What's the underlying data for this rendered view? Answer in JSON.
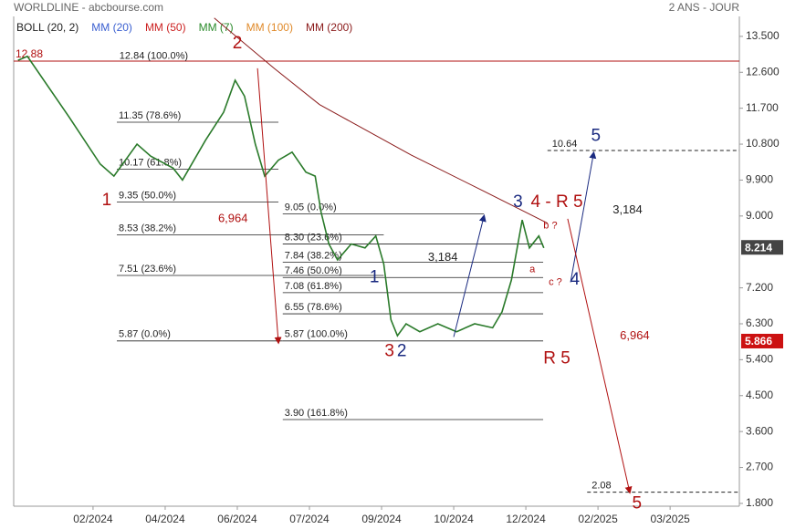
{
  "chart_data": {
    "type": "line",
    "title": "WORLDLINE - abcbourse.com",
    "subtitle": "2 ANS - JOUR",
    "indicators": [
      {
        "name": "BOLL (20, 2)",
        "color": "#222222"
      },
      {
        "name": "MM (20)",
        "color": "#3a5fd0"
      },
      {
        "name": "MM (50)",
        "color": "#cc2222"
      },
      {
        "name": "MM (7)",
        "color": "#2a8a2a"
      },
      {
        "name": "MM (100)",
        "color": "#e08a2a"
      },
      {
        "name": "MM (200)",
        "color": "#8a1a1a"
      }
    ],
    "series": [
      {
        "name": "WORLDLINE",
        "color": "#2a7a2a",
        "x": [
          -1.04,
          -0.91,
          -0.34,
          0.1,
          0.29,
          0.61,
          0.8,
          1.11,
          1.24,
          1.56,
          1.81,
          1.97,
          2.1,
          2.25,
          2.38,
          2.57,
          2.76,
          2.95,
          3.08,
          3.16,
          3.27,
          3.39,
          3.58,
          3.77,
          3.92,
          4.03,
          4.13,
          4.22,
          4.34,
          4.53,
          4.78,
          5.04,
          5.29,
          5.54,
          5.67,
          5.8,
          5.95,
          6.05,
          6.18,
          6.25
        ],
        "values": [
          12.9,
          13.0,
          11.5,
          10.3,
          10.0,
          10.8,
          10.5,
          10.2,
          9.9,
          10.9,
          11.6,
          12.4,
          12.0,
          10.8,
          10.0,
          10.4,
          10.6,
          10.1,
          10.0,
          9.1,
          8.3,
          7.9,
          8.3,
          8.2,
          8.5,
          7.8,
          6.4,
          6.0,
          6.3,
          6.1,
          6.3,
          6.1,
          6.3,
          6.2,
          6.6,
          7.4,
          8.9,
          8.2,
          8.5,
          8.2
        ]
      },
      {
        "name": "MM (200)",
        "color": "#8a1a1a",
        "x": [
          1.68,
          2.51,
          3.14,
          4.41,
          5.42,
          6.3
        ],
        "values": [
          13.96,
          12.7,
          11.79,
          10.53,
          9.62,
          8.82
        ]
      }
    ],
    "xlim": [
      -1.1,
      8.96
    ],
    "xticks": [
      {
        "value": 0,
        "label": "02/2024"
      },
      {
        "value": 1,
        "label": "04/2024"
      },
      {
        "value": 2,
        "label": "06/2024"
      },
      {
        "value": 3,
        "label": "07/2024"
      },
      {
        "value": 4,
        "label": "09/2024"
      },
      {
        "value": 5,
        "label": "10/2024"
      },
      {
        "value": 6,
        "label": "12/2024"
      },
      {
        "value": 7,
        "label": "02/2025"
      },
      {
        "value": 8,
        "label": "03/2025"
      }
    ],
    "ylim": [
      1.73,
      14.0
    ],
    "yticks": [
      {
        "value": 13.5,
        "label": "13.500"
      },
      {
        "value": 12.6,
        "label": "12.600"
      },
      {
        "value": 11.7,
        "label": "11.700"
      },
      {
        "value": 10.8,
        "label": "10.800"
      },
      {
        "value": 9.9,
        "label": "9.900"
      },
      {
        "value": 9,
        "label": "9.000"
      },
      {
        "value": 7.2,
        "label": "7.200"
      },
      {
        "value": 6.3,
        "label": "6.300"
      },
      {
        "value": 5.4,
        "label": "5.400"
      },
      {
        "value": 4.5,
        "label": "4.500"
      },
      {
        "value": 3.6,
        "label": "3.600"
      },
      {
        "value": 2.7,
        "label": "2.700"
      },
      {
        "value": 1.8,
        "label": "1.800"
      }
    ],
    "price_tags": [
      {
        "value": 8.214,
        "label": "8.214",
        "color": "#444444"
      },
      {
        "value": 5.866,
        "label": "5.866",
        "color": "#cc1111"
      }
    ],
    "resistance": {
      "value": 12.88,
      "label": "12.88",
      "color": "#b01010"
    },
    "levels": [
      {
        "label": "12.84 (100.0%)",
        "value": 12.84,
        "x1": 0.34,
        "x2": 0.34
      },
      {
        "label": "11.35 (78.6%)",
        "value": 11.35,
        "x1": 0.33,
        "x2": 2.57
      },
      {
        "label": "10.17 (61.8%)",
        "value": 10.17,
        "x1": 0.33,
        "x2": 2.57
      },
      {
        "label": "9.35 (50.0%)",
        "value": 9.35,
        "x1": 0.33,
        "x2": 2.57
      },
      {
        "label": "8.53 (38.2%)",
        "value": 8.53,
        "x1": 0.33,
        "x2": 4.03
      },
      {
        "label": "7.51 (23.6%)",
        "value": 7.51,
        "x1": 0.33,
        "x2": 4.03
      },
      {
        "label": "5.87 (0.0%)",
        "value": 5.87,
        "x1": 0.33,
        "x2": 2.63
      },
      {
        "label": "9.05 (0.0%)",
        "value": 9.05,
        "x1": 2.63,
        "x2": 5.42
      },
      {
        "label": "8.30 (23.6%)",
        "value": 8.3,
        "x1": 2.63,
        "x2": 6.24
      },
      {
        "label": "7.84 (38.2%)",
        "value": 7.84,
        "x1": 2.63,
        "x2": 6.24
      },
      {
        "label": "7.46 (50.0%)",
        "value": 7.46,
        "x1": 2.63,
        "x2": 6.24
      },
      {
        "label": "7.08 (61.8%)",
        "value": 7.08,
        "x1": 2.63,
        "x2": 6.24
      },
      {
        "label": "6.55 (78.6%)",
        "value": 6.55,
        "x1": 2.63,
        "x2": 6.24
      },
      {
        "label": "5.87 (100.0%)",
        "value": 5.87,
        "x1": 2.63,
        "x2": 6.24
      },
      {
        "label": "3.90 (161.8%)",
        "value": 3.9,
        "x1": 2.63,
        "x2": 6.24
      }
    ],
    "targets": [
      {
        "label": "10.64",
        "value": 10.64,
        "x1": 6.3,
        "x2": 8.96
      },
      {
        "label": "2.08",
        "value": 2.08,
        "x1": 6.85,
        "x2": 8.96
      }
    ],
    "arrows": [
      {
        "x": [
          2.28,
          2.57
        ],
        "y": [
          12.7,
          5.83
        ],
        "color": "#b01010"
      },
      {
        "x": [
          5.0,
          5.42
        ],
        "y": [
          5.97,
          9.0
        ],
        "color": "#1a2a80"
      },
      {
        "x": [
          6.62,
          6.94
        ],
        "y": [
          7.34,
          10.58
        ],
        "color": "#1a2a80"
      },
      {
        "x": [
          6.58,
          7.44
        ],
        "y": [
          8.93,
          2.08
        ],
        "color": "#b01010"
      }
    ],
    "annotations": [
      {
        "text": "1",
        "x": 0.19,
        "y": 9.39,
        "color": "#b01010"
      },
      {
        "text": "2",
        "x": 2.0,
        "y": 13.32,
        "color": "#b01010"
      },
      {
        "text": "6,964",
        "x": 1.94,
        "y": 8.93,
        "color": "#b01010"
      },
      {
        "text": "1",
        "x": 3.9,
        "y": 7.45,
        "color": "#1a2a80"
      },
      {
        "text": "3",
        "x": 4.11,
        "y": 5.6,
        "color": "#b01010"
      },
      {
        "text": "2",
        "x": 4.28,
        "y": 5.6,
        "color": "#1a2a80"
      },
      {
        "text": "3,184",
        "x": 4.85,
        "y": 7.95,
        "color": "#222222"
      },
      {
        "text": "3",
        "x": 5.89,
        "y": 9.34,
        "color": "#1a2a80"
      },
      {
        "text": "4 - R 5",
        "x": 6.43,
        "y": 9.34,
        "color": "#b01010"
      },
      {
        "text": "b ?",
        "x": 6.34,
        "y": 8.75,
        "color": "#b01010"
      },
      {
        "text": "a",
        "x": 6.09,
        "y": 7.66,
        "color": "#b01010"
      },
      {
        "text": "c ?",
        "x": 6.41,
        "y": 7.34,
        "color": "#b01010"
      },
      {
        "text": "4",
        "x": 6.68,
        "y": 7.4,
        "color": "#1a2a80"
      },
      {
        "text": "5",
        "x": 6.97,
        "y": 10.99,
        "color": "#1a2a80"
      },
      {
        "text": "3,184",
        "x": 7.41,
        "y": 9.14,
        "color": "#222222"
      },
      {
        "text": "6,964",
        "x": 7.51,
        "y": 5.99,
        "color": "#b01010"
      },
      {
        "text": "R 5",
        "x": 6.43,
        "y": 5.42,
        "color": "#b01010"
      },
      {
        "text": "5",
        "x": 7.54,
        "y": 1.79,
        "color": "#b01010"
      }
    ]
  }
}
